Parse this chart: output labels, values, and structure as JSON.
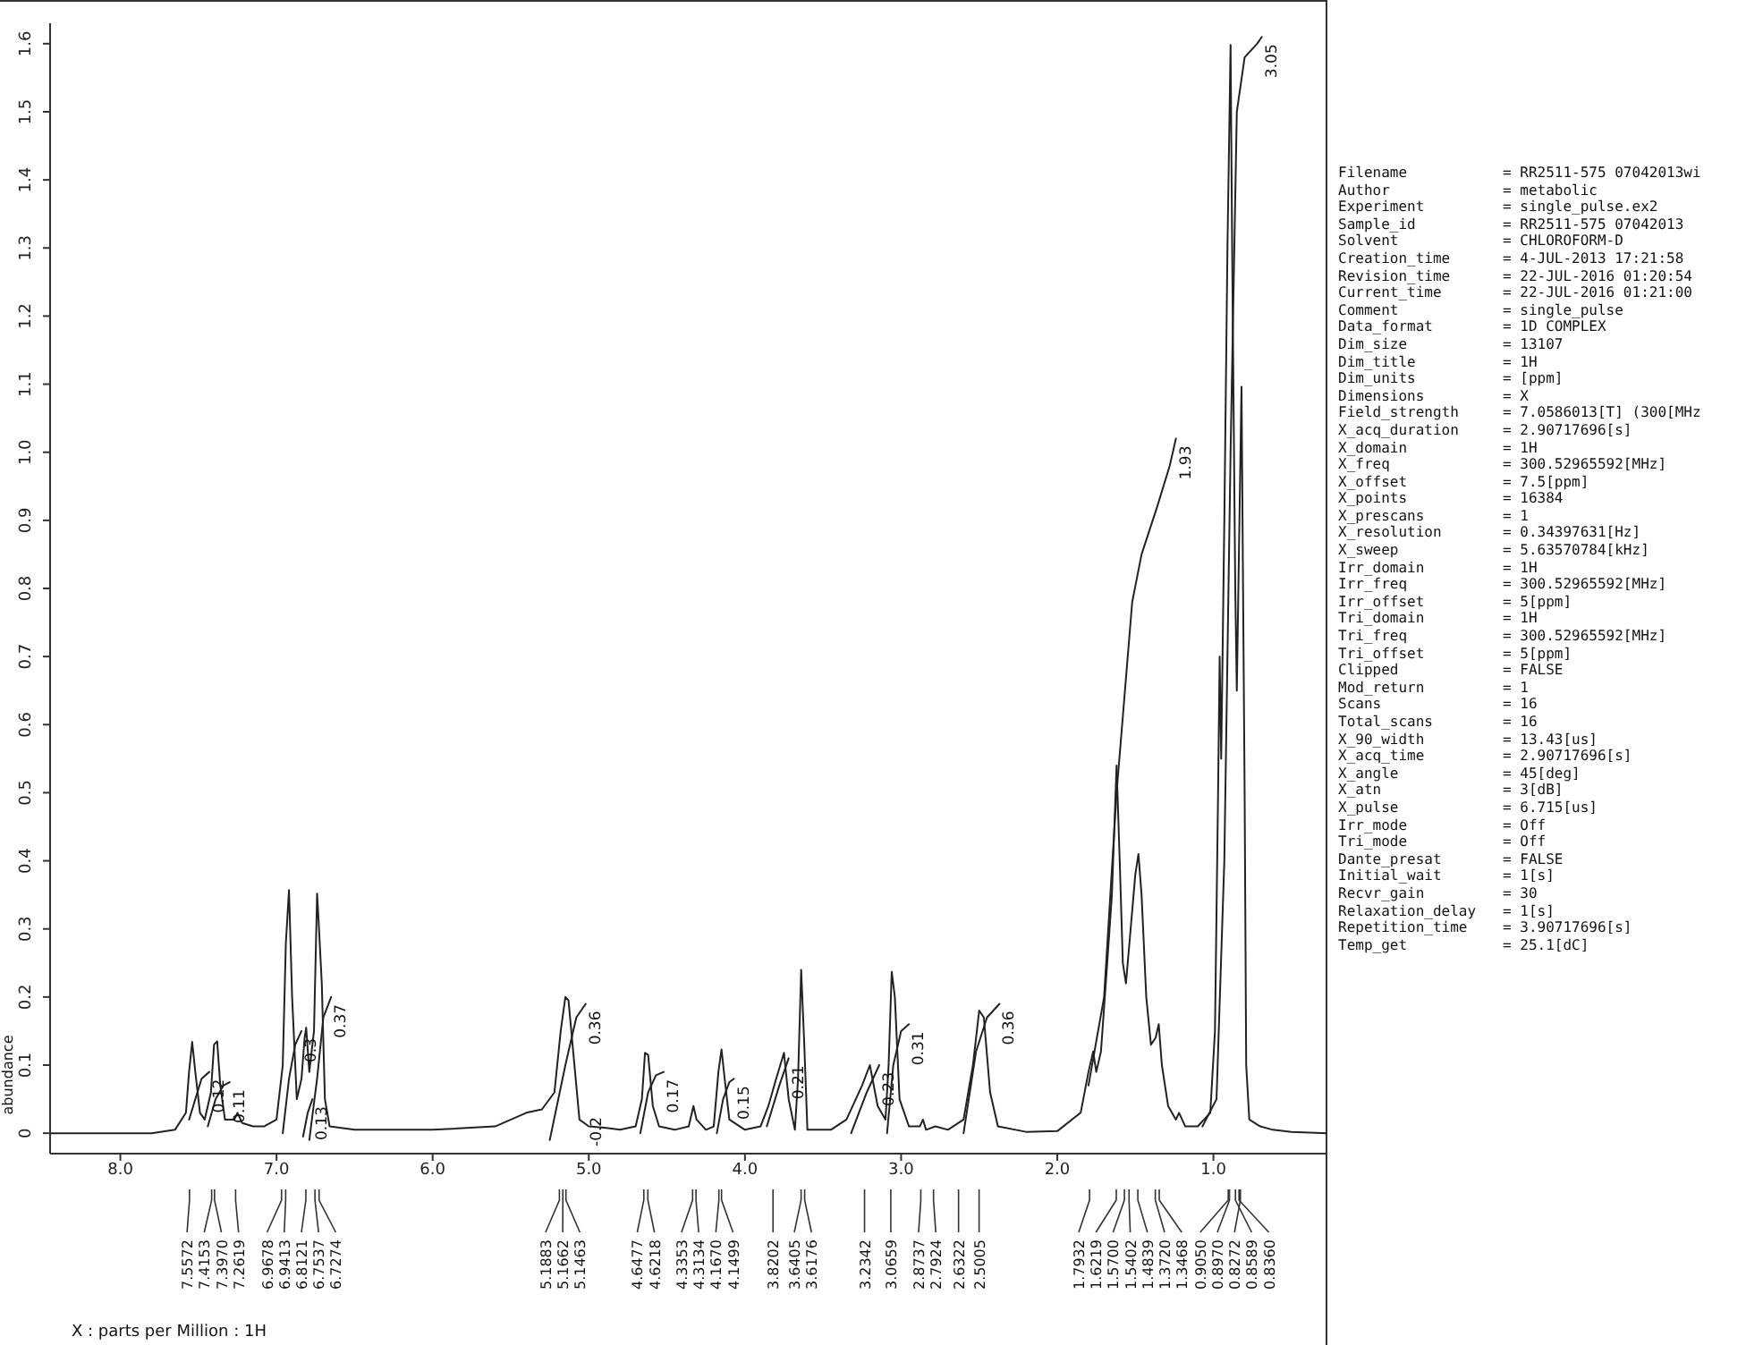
{
  "chart_data": [
    {
      "type": "line",
      "xlabel": "X : parts per Million : 1H",
      "ylabel": "abundance",
      "xlim": [
        8.45,
        0.27
      ],
      "ylim": [
        -0.03,
        1.63
      ],
      "xticks": [
        {
          "value": 8,
          "label": "8.0"
        },
        {
          "value": 7,
          "label": "7.0"
        },
        {
          "value": 6,
          "label": "6.0"
        },
        {
          "value": 5,
          "label": "5.0"
        },
        {
          "value": 4,
          "label": "4.0"
        },
        {
          "value": 3,
          "label": "3.0"
        },
        {
          "value": 2,
          "label": "2.0"
        },
        {
          "value": 1,
          "label": "1.0"
        }
      ],
      "yticks": [
        0,
        0.1,
        0.2,
        0.3,
        0.4,
        0.5,
        0.6,
        0.7,
        0.8,
        0.9,
        {
          "value": 1,
          "label": "1.0"
        },
        1.1,
        1.2,
        1.3,
        1.4,
        1.5,
        1.6
      ],
      "marker": "none",
      "line_style": "solid",
      "series": [
        {
          "color": "#222222",
          "x": [
            8.45,
            7.8,
            7.65,
            7.58,
            7.56,
            7.54,
            7.52,
            7.49,
            7.46,
            7.42,
            7.4,
            7.38,
            7.36,
            7.33,
            7.27,
            7.25,
            7.22,
            7.15,
            7.08,
            7.0,
            6.96,
            6.94,
            6.92,
            6.9,
            6.87,
            6.84,
            6.82,
            6.81,
            6.79,
            6.76,
            6.74,
            6.73,
            6.71,
            6.69,
            6.66,
            6.5,
            6.0,
            5.6,
            5.4,
            5.3,
            5.22,
            5.18,
            5.15,
            5.13,
            5.1,
            5.06,
            5.0,
            4.9,
            4.8,
            4.7,
            4.66,
            4.64,
            4.62,
            4.59,
            4.55,
            4.45,
            4.36,
            4.33,
            4.31,
            4.25,
            4.2,
            4.17,
            4.15,
            4.13,
            4.1,
            4.0,
            3.9,
            3.85,
            3.8,
            3.75,
            3.72,
            3.68,
            3.66,
            3.64,
            3.62,
            3.6,
            3.45,
            3.35,
            3.25,
            3.2,
            3.15,
            3.1,
            3.08,
            3.06,
            3.04,
            3.01,
            2.95,
            2.88,
            2.86,
            2.84,
            2.78,
            2.7,
            2.6,
            2.54,
            2.5,
            2.47,
            2.43,
            2.38,
            2.2,
            2.0,
            1.85,
            1.8,
            1.77,
            1.75,
            1.72,
            1.68,
            1.65,
            1.62,
            1.6,
            1.58,
            1.56,
            1.53,
            1.5,
            1.48,
            1.46,
            1.43,
            1.4,
            1.37,
            1.35,
            1.33,
            1.29,
            1.24,
            1.22,
            1.18,
            1.1,
            1.02,
            0.99,
            0.97,
            0.96,
            0.95,
            0.93,
            0.91,
            0.89,
            0.88,
            0.86,
            0.85,
            0.84,
            0.82,
            0.8,
            0.79,
            0.77,
            0.7,
            0.62,
            0.5,
            0.27
          ],
          "values": [
            0,
            0,
            0.005,
            0.03,
            0.09,
            0.134,
            0.09,
            0.03,
            0.02,
            0.06,
            0.13,
            0.135,
            0.07,
            0.02,
            0.02,
            0.03,
            0.015,
            0.01,
            0.01,
            0.02,
            0.1,
            0.28,
            0.357,
            0.2,
            0.05,
            0.08,
            0.14,
            0.155,
            0.09,
            0.15,
            0.352,
            0.31,
            0.22,
            0.05,
            0.01,
            0.005,
            0.005,
            0.01,
            0.03,
            0.035,
            0.06,
            0.15,
            0.2,
            0.195,
            0.12,
            0.02,
            0.01,
            0.008,
            0.005,
            0.01,
            0.05,
            0.118,
            0.115,
            0.04,
            0.01,
            0.005,
            0.01,
            0.04,
            0.02,
            0.005,
            0.01,
            0.09,
            0.123,
            0.08,
            0.02,
            0.005,
            0.01,
            0.04,
            0.08,
            0.118,
            0.05,
            0.005,
            0.08,
            0.24,
            0.13,
            0.005,
            0.005,
            0.02,
            0.07,
            0.1,
            0.04,
            0.02,
            0.1,
            0.237,
            0.2,
            0.05,
            0.01,
            0.01,
            0.02,
            0.005,
            0.01,
            0.005,
            0.02,
            0.1,
            0.18,
            0.17,
            0.06,
            0.01,
            0.002,
            0.003,
            0.03,
            0.09,
            0.12,
            0.09,
            0.12,
            0.25,
            0.35,
            0.54,
            0.4,
            0.25,
            0.22,
            0.3,
            0.38,
            0.41,
            0.35,
            0.2,
            0.13,
            0.14,
            0.16,
            0.1,
            0.04,
            0.02,
            0.03,
            0.01,
            0.01,
            0.03,
            0.15,
            0.5,
            0.7,
            0.55,
            0.9,
            1.3,
            1.598,
            1.3,
            0.8,
            0.65,
            0.8,
            1.096,
            0.5,
            0.1,
            0.02,
            0.01,
            0.005,
            0.002,
            0
          ]
        },
        {
          "type": "line",
          "color": "#222222",
          "x": [
            7.56,
            7.52,
            7.48,
            7.43
          ],
          "values": [
            0.02,
            0.05,
            0.08,
            0.09
          ]
        },
        {
          "type": "line",
          "color": "#222222",
          "x": [
            7.44,
            7.39,
            7.34,
            7.3
          ],
          "values": [
            0.01,
            0.05,
            0.07,
            0.075
          ]
        },
        {
          "type": "line",
          "color": "#222222",
          "x": [
            6.96,
            6.92,
            6.88,
            6.84
          ],
          "values": [
            0,
            0.08,
            0.13,
            0.15
          ]
        },
        {
          "type": "line",
          "color": "#222222",
          "x": [
            6.83,
            6.8,
            6.77
          ],
          "values": [
            -0.005,
            0.03,
            0.05
          ]
        },
        {
          "type": "line",
          "color": "#222222",
          "x": [
            6.79,
            6.74,
            6.7,
            6.65
          ],
          "values": [
            -0.01,
            0.08,
            0.17,
            0.2
          ]
        },
        {
          "type": "line",
          "color": "#222222",
          "x": [
            5.25,
            5.15,
            5.08,
            5.02
          ],
          "values": [
            -0.01,
            0.1,
            0.17,
            0.19
          ]
        },
        {
          "type": "line",
          "color": "#222222",
          "x": [
            4.67,
            4.62,
            4.57,
            4.52
          ],
          "values": [
            0,
            0.06,
            0.085,
            0.09
          ]
        },
        {
          "type": "line",
          "color": "#222222",
          "x": [
            4.18,
            4.14,
            4.1,
            4.07
          ],
          "values": [
            0,
            0.05,
            0.075,
            0.08
          ]
        },
        {
          "type": "line",
          "color": "#222222",
          "x": [
            3.86,
            3.78,
            3.72
          ],
          "values": [
            0.01,
            0.07,
            0.11
          ]
        },
        {
          "type": "line",
          "color": "#222222",
          "x": [
            3.32,
            3.22,
            3.14
          ],
          "values": [
            0,
            0.06,
            0.1
          ]
        },
        {
          "type": "line",
          "color": "#222222",
          "x": [
            3.09,
            3.05,
            3.0,
            2.95
          ],
          "values": [
            0,
            0.1,
            0.15,
            0.16
          ]
        },
        {
          "type": "line",
          "color": "#222222",
          "x": [
            2.6,
            2.52,
            2.45,
            2.37
          ],
          "values": [
            0,
            0.12,
            0.17,
            0.19
          ]
        },
        {
          "type": "line",
          "color": "#222222",
          "x": [
            1.8,
            1.7,
            1.62,
            1.52,
            1.46,
            1.36,
            1.28,
            1.24
          ],
          "values": [
            0.07,
            0.2,
            0.5,
            0.78,
            0.85,
            0.92,
            0.98,
            1.02
          ]
        },
        {
          "type": "line",
          "color": "#222222",
          "x": [
            1.07,
            0.98,
            0.93,
            0.89,
            0.85,
            0.8,
            0.72,
            0.69
          ],
          "values": [
            0.01,
            0.05,
            0.4,
            1.0,
            1.5,
            1.58,
            1.6,
            1.61
          ]
        }
      ],
      "annotations": [
        {
          "text": "0.12",
          "x": 7.43,
          "y": 0.09
        },
        {
          "text": "0.11",
          "x": 7.3,
          "y": 0.075
        },
        {
          "text": "0.3",
          "x": 6.84,
          "y": 0.15
        },
        {
          "text": "0.13",
          "x": 6.77,
          "y": 0.05
        },
        {
          "text": "0.37",
          "x": 6.65,
          "y": 0.2
        },
        {
          "text": "0.36",
          "x": 5.02,
          "y": 0.19
        },
        "-0.2",
        {
          "text": "0.17",
          "x": 4.52,
          "y": 0.09
        },
        {
          "text": "0.15",
          "x": 4.07,
          "y": 0.08
        },
        {
          "text": "0.21",
          "x": 3.72,
          "y": 0.11
        },
        {
          "text": "0.23",
          "x": 3.14,
          "y": 0.1
        },
        {
          "text": "0.31",
          "x": 2.95,
          "y": 0.16
        },
        {
          "text": "0.36",
          "x": 2.37,
          "y": 0.19
        },
        {
          "text": "1.93",
          "x": 1.24,
          "y": 1.02
        },
        {
          "text": "3.05",
          "x": 0.69,
          "y": 1.61
        },
        {
          "text": "7.5572",
          "x": 7.5572
        },
        {
          "text": "7.4153",
          "x": 7.4153
        },
        {
          "text": "7.3970",
          "x": 7.397
        },
        {
          "text": "7.2619",
          "x": 7.2619
        },
        {
          "text": "6.9678",
          "x": 6.9678
        },
        {
          "text": "6.9413",
          "x": 6.9413
        },
        {
          "text": "6.8121",
          "x": 6.8121
        },
        {
          "text": "6.7537",
          "x": 6.7537
        },
        {
          "text": "6.7274",
          "x": 6.7274
        },
        {
          "text": "5.1883",
          "x": 5.1883
        },
        {
          "text": "5.1662",
          "x": 5.1662
        },
        {
          "text": "5.1463",
          "x": 5.1463
        },
        {
          "text": "4.6477",
          "x": 4.6477
        },
        {
          "text": "4.6218",
          "x": 4.6218
        },
        {
          "text": "4.3353",
          "x": 4.3353
        },
        {
          "text": "4.3134",
          "x": 4.3134
        },
        {
          "text": "4.1670",
          "x": 4.167
        },
        {
          "text": "4.1499",
          "x": 4.1499
        },
        {
          "text": "3.8202",
          "x": 3.8202
        },
        {
          "text": "3.6405",
          "x": 3.6405
        },
        {
          "text": "3.6176",
          "x": 3.6176
        },
        {
          "text": "3.2342",
          "x": 3.2342
        },
        {
          "text": "3.0659",
          "x": 3.0659
        },
        {
          "text": "2.8737",
          "x": 2.8737
        },
        {
          "text": "2.7924",
          "x": 2.7924
        },
        {
          "text": "2.6322",
          "x": 2.6322
        },
        {
          "text": "2.5005",
          "x": 2.5005
        },
        {
          "text": "1.7932",
          "x": 1.7932
        },
        {
          "text": "1.6219",
          "x": 1.6219
        },
        {
          "text": "1.5700",
          "x": 1.57
        },
        {
          "text": "1.5402",
          "x": 1.5402
        },
        {
          "text": "1.4839",
          "x": 1.4839
        },
        {
          "text": "1.3720",
          "x": 1.372
        },
        {
          "text": "1.3468",
          "x": 1.3468
        },
        {
          "text": "0.9050",
          "x": 0.905
        },
        {
          "text": "0.8970",
          "x": 0.897
        },
        {
          "text": "0.8272",
          "x": 0.8272
        },
        {
          "text": "0.8589",
          "x": 0.8589
        },
        {
          "text": "0.8360",
          "x": 0.836
        }
      ]
    },
    {
      "type": "other",
      "annotations": [
        "Filename = RR2511-575 07042013wi",
        "Author = metabolic",
        "Experiment = single_pulse.ex2",
        "Sample_id = RR2511-575 07042013",
        "Solvent = CHLOROFORM-D",
        "Creation_time = 4-JUL-2013 17:21:58",
        "Revision_time = 22-JUL-2016 01:20:54",
        "Current_time = 22-JUL-2016 01:21:00",
        "Comment = single_pulse",
        "Data_format = 1D COMPLEX",
        "Dim_size = 13107",
        "Dim_title = 1H",
        "Dim_units = [ppm]",
        "Dimensions = X",
        "Field_strength = 7.0586013[T] (300[MHz",
        "X_acq_duration = 2.90717696[s]",
        "X_domain = 1H",
        "X_freq = 300.52965592[MHz]",
        "X_offset = 7.5[ppm]",
        "X_points = 16384",
        "X_prescans = 1",
        "X_resolution = 0.34397631[Hz]",
        "X_sweep = 5.63570784[kHz]",
        "Irr_domain = 1H",
        "Irr_freq = 300.52965592[MHz]",
        "Irr_offset = 5[ppm]",
        "Tri_domain = 1H",
        "Tri_freq = 300.52965592[MHz]",
        "Tri_offset = 5[ppm]",
        "Clipped = FALSE",
        "Mod_return = 1",
        "Scans = 16",
        "Total_scans = 16",
        "X_90_width = 13.43[us]",
        "X_acq_time = 2.90717696[s]",
        "X_angle = 45[deg]",
        "X_atn = 3[dB]",
        "X_pulse = 6.715[us]",
        "Irr_mode = Off",
        "Tri_mode = Off",
        "Dante_presat = FALSE",
        "Initial_wait = 1[s]",
        "Recvr_gain = 30",
        "Relaxation_delay = 1[s]",
        "Repetition_time = 3.90717696[s]",
        "Temp_get = 25.1[dC]"
      ]
    }
  ]
}
